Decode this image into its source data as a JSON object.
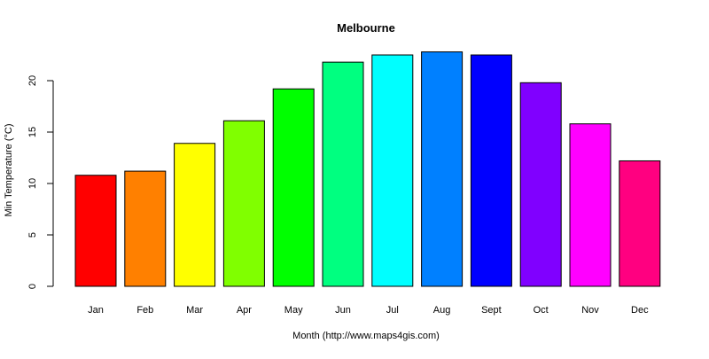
{
  "chart_data": {
    "type": "bar",
    "title": "Melbourne",
    "xlabel": "Month (http://www.maps4gis.com)",
    "ylabel": "Min Temperature (°C)",
    "categories": [
      "Jan",
      "Feb",
      "Mar",
      "Apr",
      "May",
      "Jun",
      "Jul",
      "Aug",
      "Sept",
      "Oct",
      "Nov",
      "Dec"
    ],
    "values": [
      10.8,
      11.2,
      13.9,
      16.1,
      19.2,
      21.8,
      22.5,
      22.8,
      22.5,
      19.8,
      15.8,
      12.2
    ],
    "colors": [
      "#FF0000",
      "#FF8000",
      "#FFFF00",
      "#80FF00",
      "#00FF00",
      "#00FF80",
      "#00FFFF",
      "#0080FF",
      "#0000FF",
      "#8000FF",
      "#FF00FF",
      "#FF0080"
    ],
    "yticks": [
      0,
      5,
      10,
      15,
      20
    ],
    "ylim": [
      0,
      23
    ],
    "grid": false,
    "legend": "none"
  }
}
